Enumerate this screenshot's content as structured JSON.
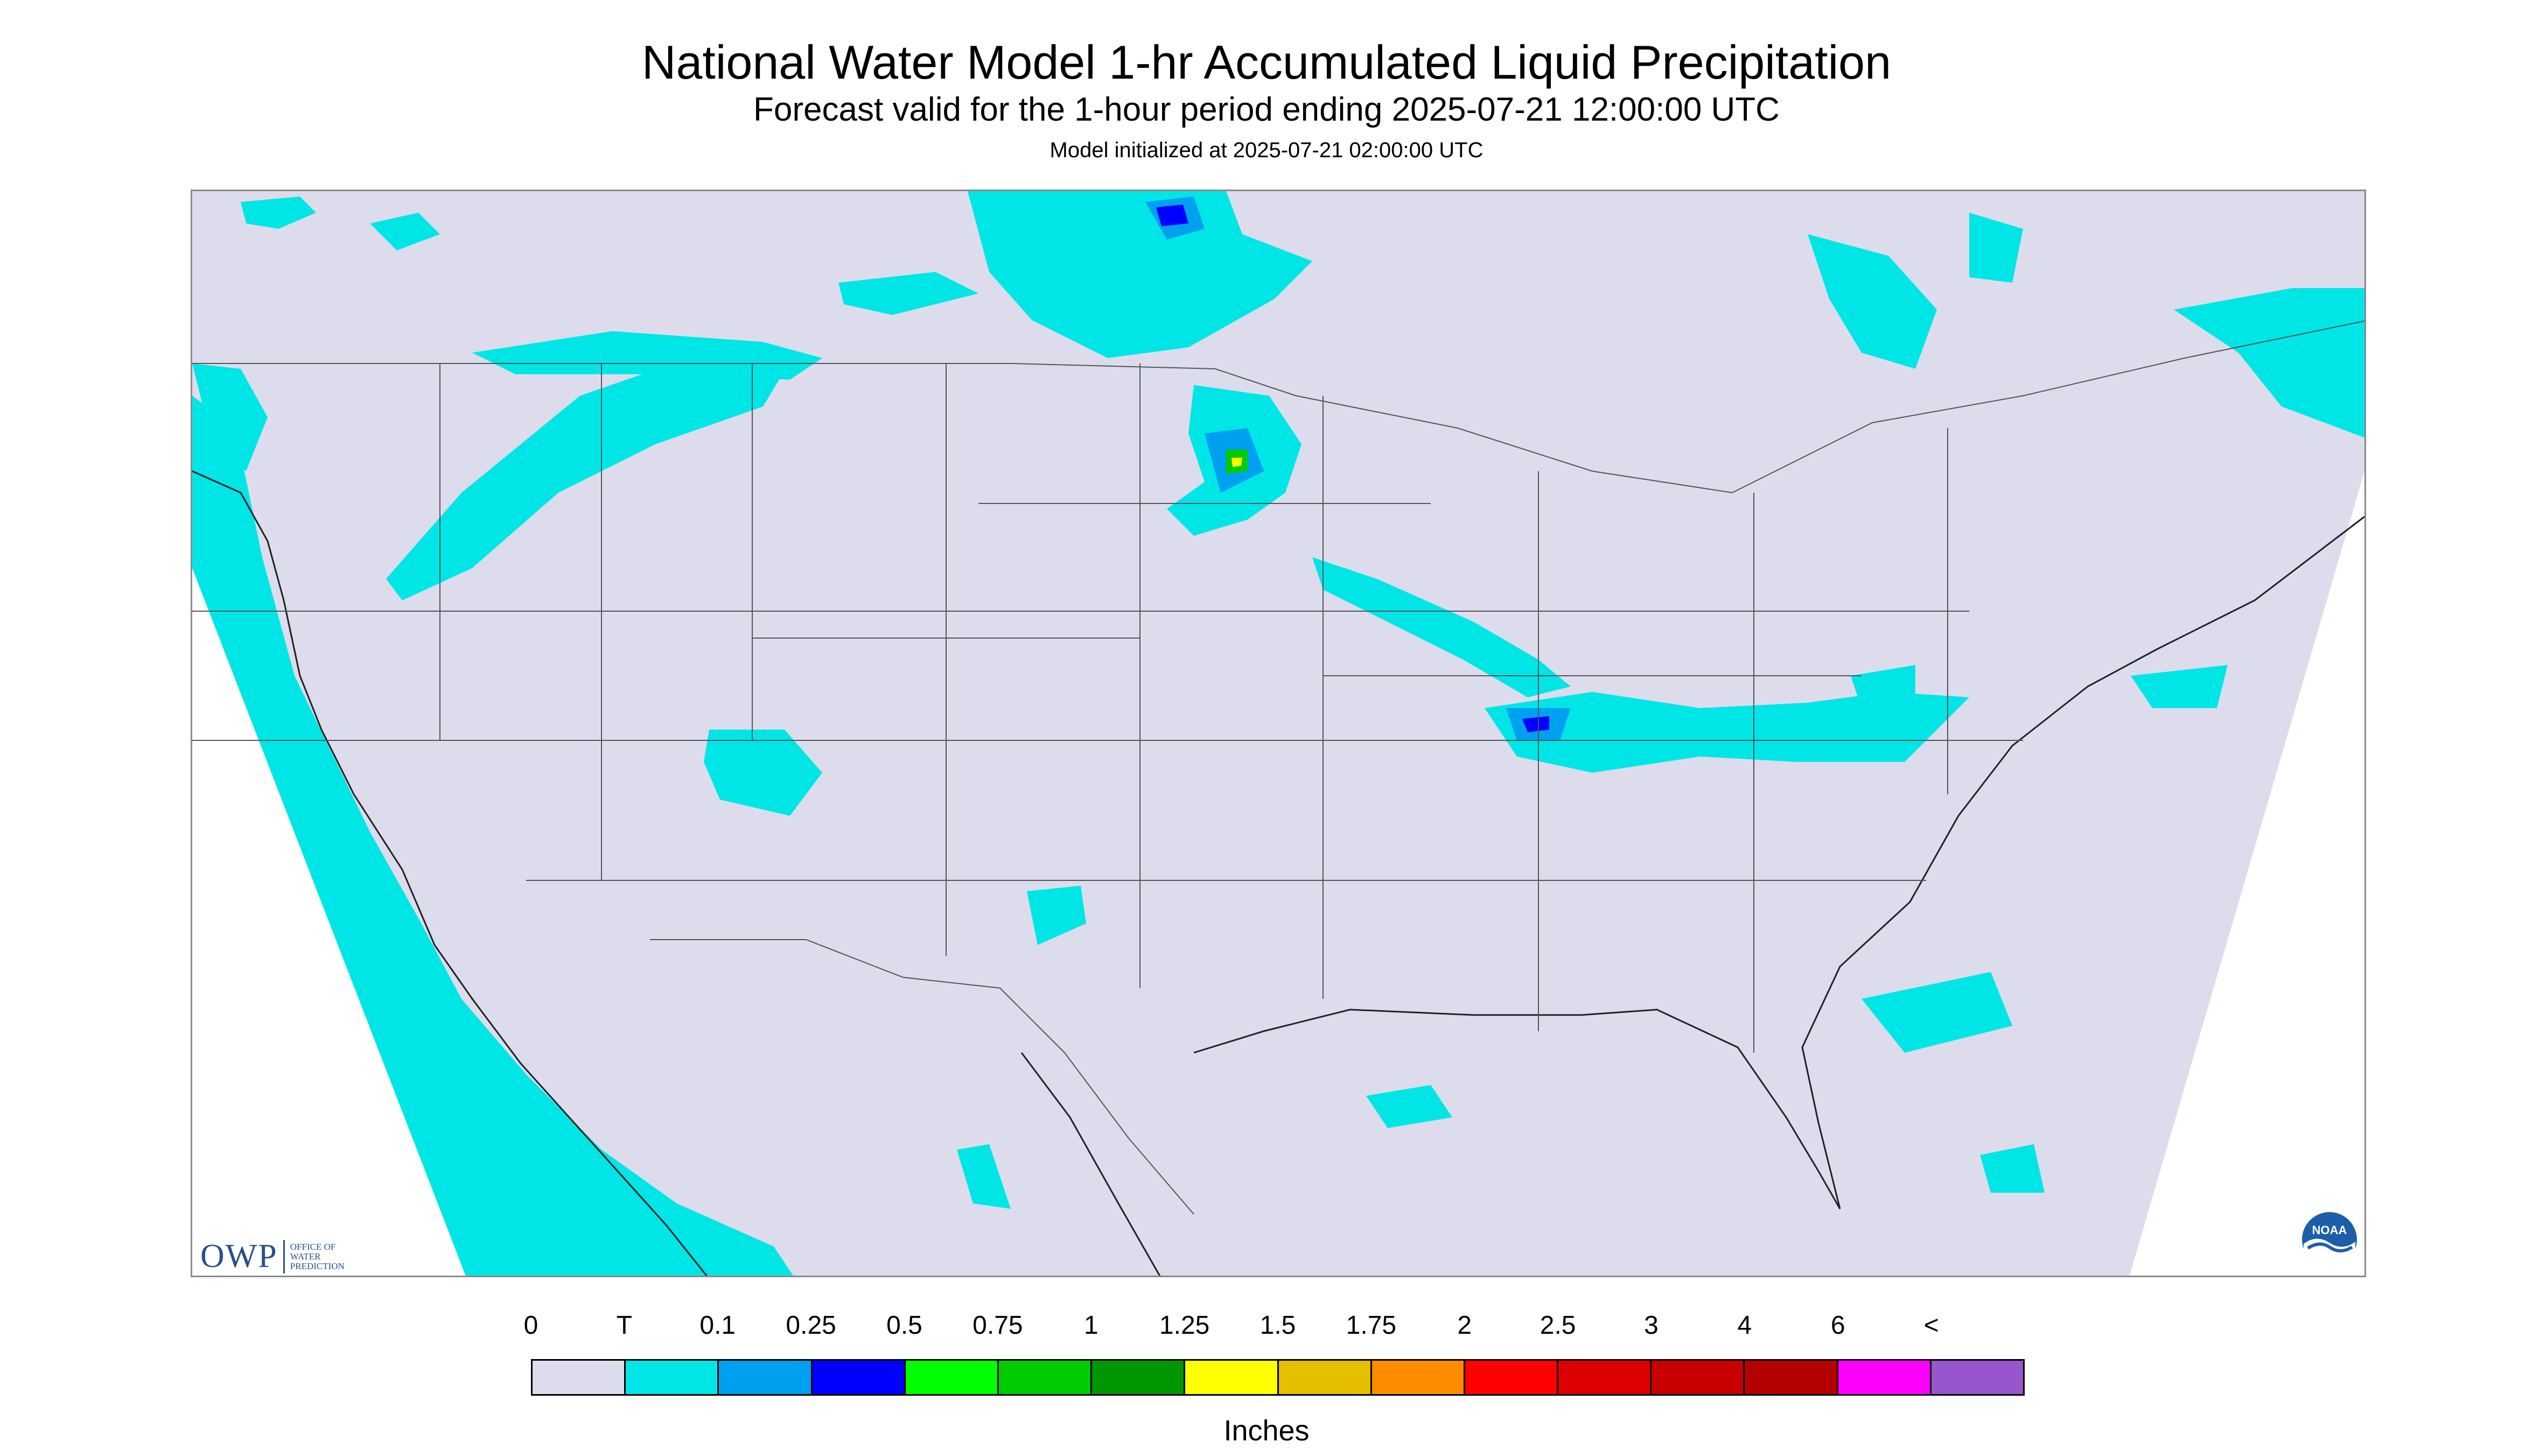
{
  "title": "National Water Model 1-hr Accumulated Liquid Precipitation",
  "subtitle": "Forecast valid for the 1-hour period ending 2025-07-21 12:00:00 UTC",
  "init_text": "Model initialized at 2025-07-21 02:00:00 UTC",
  "logos": {
    "owp_letters": "OWP",
    "owp_full": [
      "OFFICE OF",
      "WATER",
      "PREDICTION"
    ],
    "noaa": "NOAA"
  },
  "legend": {
    "labels": [
      "0",
      "T",
      "0.1",
      "0.25",
      "0.5",
      "0.75",
      "1",
      "1.25",
      "1.5",
      "1.75",
      "2",
      "2.5",
      "3",
      "4",
      "6",
      "<"
    ],
    "colors": [
      "#dcdcec",
      "#00e6e6",
      "#00a0f0",
      "#0000ff",
      "#00ff00",
      "#00cc00",
      "#009600",
      "#ffff00",
      "#e6be00",
      "#ff8c00",
      "#ff0000",
      "#dc0000",
      "#c80000",
      "#b40000",
      "#ff00ff",
      "#9955cc"
    ],
    "units": "Inches"
  },
  "map_colors": {
    "background": "#dcdcec",
    "outside": "#ffffff",
    "trace": "#00e6e6",
    "light": "#00a0f0",
    "moderate": "#0000ff",
    "heavy_green": "#00cc00",
    "heavy_yellow": "#ffff00",
    "boundary": "#555555",
    "coast": "#222222"
  }
}
